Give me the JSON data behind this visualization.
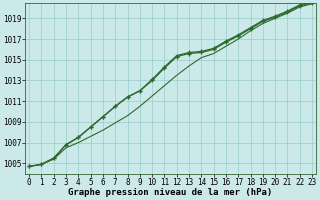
{
  "x": [
    0,
    1,
    2,
    3,
    4,
    5,
    6,
    7,
    8,
    9,
    10,
    11,
    12,
    13,
    14,
    15,
    16,
    17,
    18,
    19,
    20,
    21,
    22,
    23
  ],
  "line_upper": [
    1004.7,
    1004.9,
    1005.5,
    1006.8,
    1007.5,
    1008.5,
    1009.5,
    1010.5,
    1011.4,
    1012.0,
    1013.0,
    1014.2,
    1015.3,
    1015.6,
    1015.7,
    1016.0,
    1016.7,
    1017.3,
    1018.0,
    1018.7,
    1019.1,
    1019.6,
    1020.2,
    1020.5
  ],
  "line_mid": [
    1004.7,
    1004.9,
    1005.5,
    1006.8,
    1007.5,
    1008.5,
    1009.5,
    1010.5,
    1011.4,
    1012.0,
    1013.1,
    1014.3,
    1015.4,
    1015.7,
    1015.8,
    1016.1,
    1016.8,
    1017.4,
    1018.1,
    1018.8,
    1019.2,
    1019.7,
    1020.3,
    1020.6
  ],
  "line_lower": [
    1004.7,
    1004.9,
    1005.4,
    1006.5,
    1007.0,
    1007.6,
    1008.2,
    1008.9,
    1009.6,
    1010.5,
    1011.5,
    1012.5,
    1013.5,
    1014.4,
    1015.2,
    1015.6,
    1016.3,
    1017.0,
    1017.8,
    1018.5,
    1019.0,
    1019.5,
    1020.1,
    1020.4
  ],
  "background_color": "#cce9e9",
  "grid_color": "#99cccc",
  "line_color_upper": "#2d6a2d",
  "line_color_lower": "#2d6a2d",
  "xlabel": "Graphe pression niveau de la mer (hPa)",
  "ylim_min": 1004.0,
  "ylim_max": 1020.5,
  "yticks": [
    1005,
    1007,
    1009,
    1011,
    1013,
    1015,
    1017,
    1019
  ],
  "xticks": [
    0,
    1,
    2,
    3,
    4,
    5,
    6,
    7,
    8,
    9,
    10,
    11,
    12,
    13,
    14,
    15,
    16,
    17,
    18,
    19,
    20,
    21,
    22,
    23
  ],
  "tick_fontsize": 5.5,
  "xlabel_fontsize": 6.5
}
